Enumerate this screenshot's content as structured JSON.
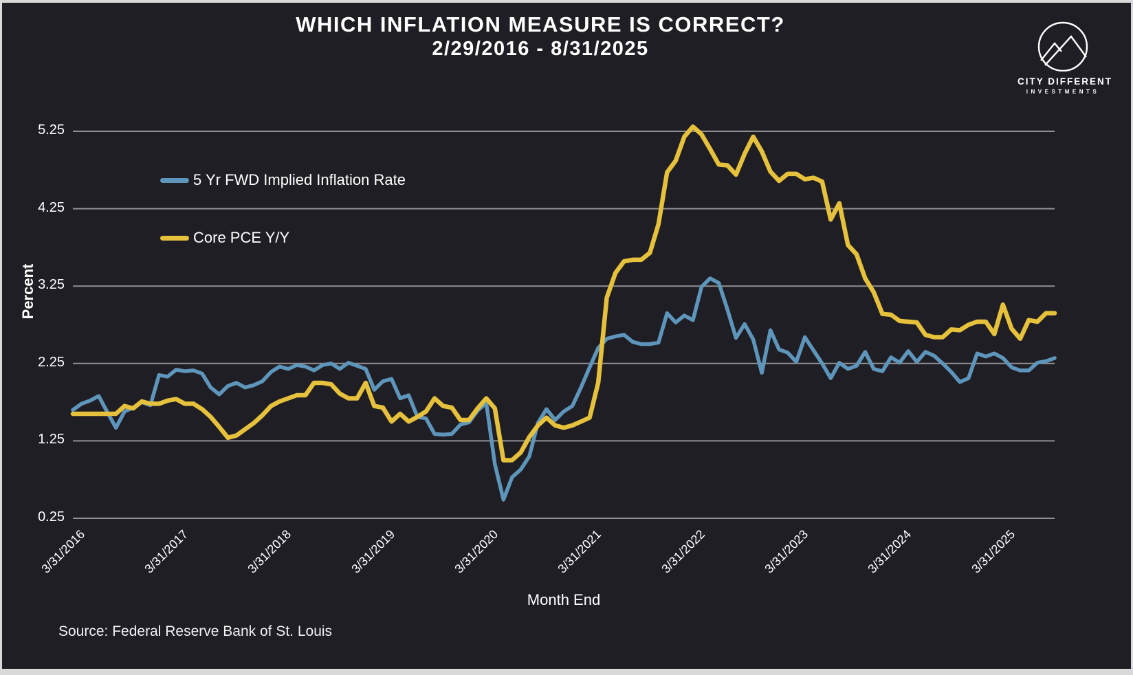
{
  "title": {
    "line1": "WHICH INFLATION MEASURE IS CORRECT?",
    "line2": "2/29/2016 - 8/31/2025"
  },
  "logo": {
    "line1": "CITY DIFFERENT",
    "line2": "INVESTMENTS"
  },
  "source_note": "Source: Federal Reserve Bank of St. Louis",
  "chart_data": {
    "type": "line",
    "title": "WHICH INFLATION MEASURE IS CORRECT? 2/29/2016 - 8/31/2025",
    "xlabel": "Month End",
    "ylabel": "Percent",
    "ylim": [
      0.25,
      5.25
    ],
    "grid": "horizontal",
    "legend_position": "upper-left-inside",
    "y_tick_labels": [
      "5.25",
      "4.25",
      "3.25",
      "2.25",
      "1.25",
      "0.25"
    ],
    "y_ticks": [
      5.25,
      4.25,
      3.25,
      2.25,
      1.25,
      0.25
    ],
    "x_tick_labels": [
      "3/31/2016",
      "3/31/2017",
      "3/31/2018",
      "3/31/2019",
      "3/31/2020",
      "3/31/2021",
      "3/31/2022",
      "3/31/2023",
      "3/31/2024",
      "3/31/2025"
    ],
    "x_tick_month_index": [
      1,
      13,
      25,
      37,
      49,
      61,
      73,
      85,
      97,
      109
    ],
    "x": [
      "2/2016",
      "3/2016",
      "4/2016",
      "5/2016",
      "6/2016",
      "7/2016",
      "8/2016",
      "9/2016",
      "10/2016",
      "11/2016",
      "12/2016",
      "1/2017",
      "2/2017",
      "3/2017",
      "4/2017",
      "5/2017",
      "6/2017",
      "7/2017",
      "8/2017",
      "9/2017",
      "10/2017",
      "11/2017",
      "12/2017",
      "1/2018",
      "2/2018",
      "3/2018",
      "4/2018",
      "5/2018",
      "6/2018",
      "7/2018",
      "8/2018",
      "9/2018",
      "10/2018",
      "11/2018",
      "12/2018",
      "1/2019",
      "2/2019",
      "3/2019",
      "4/2019",
      "5/2019",
      "6/2019",
      "7/2019",
      "8/2019",
      "9/2019",
      "10/2019",
      "11/2019",
      "12/2019",
      "1/2020",
      "2/2020",
      "3/2020",
      "4/2020",
      "5/2020",
      "6/2020",
      "7/2020",
      "8/2020",
      "9/2020",
      "10/2020",
      "11/2020",
      "12/2020",
      "1/2021",
      "2/2021",
      "3/2021",
      "4/2021",
      "5/2021",
      "6/2021",
      "7/2021",
      "8/2021",
      "9/2021",
      "10/2021",
      "11/2021",
      "12/2021",
      "1/2022",
      "2/2022",
      "3/2022",
      "4/2022",
      "5/2022",
      "6/2022",
      "7/2022",
      "8/2022",
      "9/2022",
      "10/2022",
      "11/2022",
      "12/2022",
      "1/2023",
      "2/2023",
      "3/2023",
      "4/2023",
      "5/2023",
      "6/2023",
      "7/2023",
      "8/2023",
      "9/2023",
      "10/2023",
      "11/2023",
      "12/2023",
      "1/2024",
      "2/2024",
      "3/2024",
      "4/2024",
      "5/2024",
      "6/2024",
      "7/2024",
      "8/2024",
      "9/2024",
      "10/2024",
      "11/2024",
      "12/2024",
      "1/2025",
      "2/2025",
      "3/2025",
      "4/2025",
      "5/2025",
      "6/2025",
      "7/2025",
      "8/2025"
    ],
    "series": [
      {
        "name": "5 Yr FWD Implied Inflation Rate",
        "color": "#5E95BB",
        "width": 5.5,
        "values": [
          1.65,
          1.73,
          1.77,
          1.83,
          1.62,
          1.42,
          1.63,
          1.68,
          1.75,
          1.71,
          2.1,
          2.08,
          2.17,
          2.15,
          2.16,
          2.12,
          1.94,
          1.85,
          1.96,
          2.0,
          1.94,
          1.97,
          2.02,
          2.14,
          2.21,
          2.18,
          2.23,
          2.21,
          2.16,
          2.23,
          2.25,
          2.18,
          2.26,
          2.22,
          2.18,
          1.91,
          2.02,
          2.05,
          1.8,
          1.84,
          1.56,
          1.54,
          1.34,
          1.33,
          1.34,
          1.46,
          1.49,
          1.64,
          1.74,
          0.95,
          0.49,
          0.78,
          0.88,
          1.05,
          1.48,
          1.66,
          1.52,
          1.63,
          1.7,
          1.94,
          2.2,
          2.45,
          2.57,
          2.6,
          2.62,
          2.53,
          2.5,
          2.5,
          2.52,
          2.9,
          2.78,
          2.87,
          2.81,
          3.24,
          3.35,
          3.29,
          2.95,
          2.58,
          2.76,
          2.56,
          2.13,
          2.68,
          2.43,
          2.39,
          2.27,
          2.59,
          2.42,
          2.25,
          2.06,
          2.26,
          2.18,
          2.22,
          2.4,
          2.18,
          2.15,
          2.33,
          2.26,
          2.41,
          2.27,
          2.4,
          2.35,
          2.25,
          2.14,
          2.01,
          2.06,
          2.38,
          2.34,
          2.38,
          2.32,
          2.2,
          2.16,
          2.16,
          2.26,
          2.28,
          2.32
        ]
      },
      {
        "name": "Core PCE Y/Y",
        "color": "#E6C13C",
        "width": 6.5,
        "values": [
          1.6,
          1.6,
          1.6,
          1.6,
          1.6,
          1.6,
          1.7,
          1.67,
          1.76,
          1.73,
          1.73,
          1.77,
          1.79,
          1.73,
          1.73,
          1.66,
          1.56,
          1.43,
          1.29,
          1.32,
          1.4,
          1.48,
          1.58,
          1.7,
          1.76,
          1.8,
          1.84,
          1.84,
          2.0,
          2.0,
          1.98,
          1.86,
          1.8,
          1.8,
          2.0,
          1.7,
          1.68,
          1.5,
          1.6,
          1.5,
          1.56,
          1.63,
          1.8,
          1.7,
          1.68,
          1.52,
          1.52,
          1.67,
          1.8,
          1.67,
          1.0,
          1.0,
          1.1,
          1.3,
          1.45,
          1.55,
          1.45,
          1.42,
          1.45,
          1.5,
          1.55,
          2.0,
          3.1,
          3.42,
          3.57,
          3.59,
          3.59,
          3.68,
          4.05,
          4.72,
          4.87,
          5.18,
          5.31,
          5.21,
          5.02,
          4.82,
          4.81,
          4.69,
          4.96,
          5.18,
          4.99,
          4.73,
          4.61,
          4.7,
          4.7,
          4.63,
          4.65,
          4.6,
          4.11,
          4.32,
          3.78,
          3.66,
          3.35,
          3.17,
          2.89,
          2.88,
          2.8,
          2.79,
          2.78,
          2.62,
          2.59,
          2.59,
          2.69,
          2.68,
          2.75,
          2.79,
          2.79,
          2.63,
          3.01,
          2.7,
          2.57,
          2.81,
          2.79,
          2.9,
          2.9
        ]
      }
    ],
    "colors": {
      "background": "#201E25",
      "border": "#D9D9D9",
      "gridline": "#909090",
      "text": "#FFFFFF"
    }
  }
}
